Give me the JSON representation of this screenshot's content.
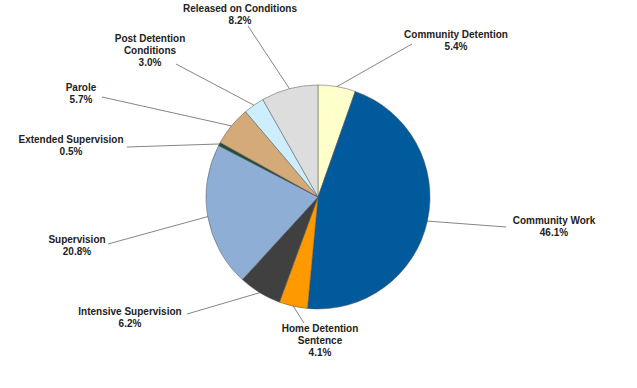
{
  "chart_data": {
    "type": "pie",
    "categories": [
      "Community Detention",
      "Community Work",
      "Home Detention Sentence",
      "Intensive Supervision",
      "Supervision",
      "Extended Supervision",
      "Parole",
      "Post Detention Conditions",
      "Released on Conditions"
    ],
    "values": [
      5.4,
      46.1,
      4.1,
      6.2,
      20.8,
      0.5,
      5.7,
      3.0,
      8.2
    ],
    "value_labels": [
      "5.4%",
      "46.1%",
      "4.1%",
      "6.2%",
      "20.8%",
      "0.5%",
      "5.7%",
      "3.0%",
      "8.2%"
    ],
    "colors": [
      "#ffffcc",
      "#005a9c",
      "#ff9900",
      "#404040",
      "#8eaed6",
      "#1f4e3d",
      "#d4aa78",
      "#cceeff",
      "#dddddd"
    ],
    "data_labels": true
  }
}
